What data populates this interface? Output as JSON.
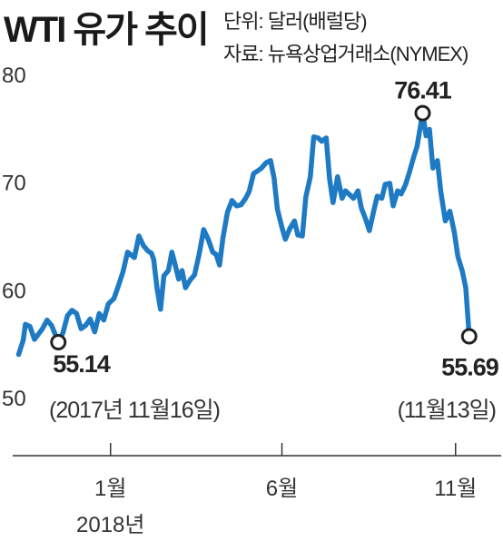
{
  "header": {
    "title": "WTI 유가 추이",
    "unit": "단위: 달러(배럴당)",
    "source": "자료: 뉴욕상업거래소(NYMEX)"
  },
  "colors": {
    "line": "#1f7ac4",
    "axis": "#333333",
    "text": "#222222"
  },
  "chart_data": {
    "type": "line",
    "title": "WTI 유가 추이",
    "xlabel": "",
    "ylabel": "",
    "ylim": [
      50,
      80
    ],
    "y_ticks": [
      50,
      60,
      70,
      80
    ],
    "x_ticks": [
      {
        "date": "2018-01-01",
        "label": "1월",
        "sublabel": "2018년"
      },
      {
        "date": "2018-06-01",
        "label": "6월"
      },
      {
        "date": "2018-11-01",
        "label": "11월"
      }
    ],
    "xlim": [
      "2017-10-10",
      "2018-11-30"
    ],
    "grid": false,
    "series": [
      {
        "points": [
          [
            "2017-10-12",
            54.0
          ],
          [
            "2017-10-16",
            55.3
          ],
          [
            "2017-10-18",
            56.8
          ],
          [
            "2017-10-22",
            56.6
          ],
          [
            "2017-10-26",
            55.4
          ],
          [
            "2017-11-02",
            56.4
          ],
          [
            "2017-11-06",
            57.2
          ],
          [
            "2017-11-10",
            56.7
          ],
          [
            "2017-11-16",
            55.14
          ],
          [
            "2017-11-20",
            56.0
          ],
          [
            "2017-11-24",
            57.6
          ],
          [
            "2017-11-28",
            58.1
          ],
          [
            "2017-12-02",
            57.8
          ],
          [
            "2017-12-06",
            56.4
          ],
          [
            "2017-12-10",
            56.7
          ],
          [
            "2017-12-14",
            57.3
          ],
          [
            "2017-12-18",
            56.1
          ],
          [
            "2017-12-22",
            57.8
          ],
          [
            "2017-12-26",
            57.2
          ],
          [
            "2017-12-30",
            58.7
          ],
          [
            "2018-01-04",
            59.2
          ],
          [
            "2018-01-08",
            60.4
          ],
          [
            "2018-01-12",
            61.7
          ],
          [
            "2018-01-16",
            63.5
          ],
          [
            "2018-01-22",
            63.0
          ],
          [
            "2018-01-26",
            65.0
          ],
          [
            "2018-01-30",
            64.1
          ],
          [
            "2018-02-03",
            63.6
          ],
          [
            "2018-02-06",
            63.4
          ],
          [
            "2018-02-08",
            62.8
          ],
          [
            "2018-02-11",
            60.1
          ],
          [
            "2018-02-14",
            58.2
          ],
          [
            "2018-02-17",
            61.3
          ],
          [
            "2018-02-21",
            61.8
          ],
          [
            "2018-02-24",
            63.5
          ],
          [
            "2018-02-27",
            62.3
          ],
          [
            "2018-03-02",
            61.0
          ],
          [
            "2018-03-05",
            61.8
          ],
          [
            "2018-03-08",
            60.2
          ],
          [
            "2018-03-12",
            60.9
          ],
          [
            "2018-03-16",
            61.4
          ],
          [
            "2018-03-20",
            63.3
          ],
          [
            "2018-03-24",
            65.6
          ],
          [
            "2018-03-28",
            64.7
          ],
          [
            "2018-04-01",
            63.5
          ],
          [
            "2018-04-04",
            63.3
          ],
          [
            "2018-04-07",
            62.3
          ],
          [
            "2018-04-10",
            64.8
          ],
          [
            "2018-04-14",
            67.2
          ],
          [
            "2018-04-18",
            68.3
          ],
          [
            "2018-04-22",
            67.8
          ],
          [
            "2018-04-26",
            67.9
          ],
          [
            "2018-04-30",
            68.5
          ],
          [
            "2018-05-03",
            69.1
          ],
          [
            "2018-05-07",
            70.8
          ],
          [
            "2018-05-10",
            71.0
          ],
          [
            "2018-05-14",
            71.3
          ],
          [
            "2018-05-18",
            71.8
          ],
          [
            "2018-05-22",
            72.0
          ],
          [
            "2018-05-25",
            70.4
          ],
          [
            "2018-05-28",
            67.5
          ],
          [
            "2018-06-01",
            65.8
          ],
          [
            "2018-06-04",
            64.7
          ],
          [
            "2018-06-08",
            65.7
          ],
          [
            "2018-06-12",
            66.4
          ],
          [
            "2018-06-15",
            65.1
          ],
          [
            "2018-06-19",
            65.0
          ],
          [
            "2018-06-22",
            68.6
          ],
          [
            "2018-06-26",
            70.5
          ],
          [
            "2018-06-29",
            74.2
          ],
          [
            "2018-07-03",
            74.1
          ],
          [
            "2018-07-06",
            73.8
          ],
          [
            "2018-07-10",
            74.1
          ],
          [
            "2018-07-13",
            70.3
          ],
          [
            "2018-07-16",
            68.1
          ],
          [
            "2018-07-20",
            70.5
          ],
          [
            "2018-07-24",
            68.5
          ],
          [
            "2018-07-27",
            69.2
          ],
          [
            "2018-07-31",
            68.8
          ],
          [
            "2018-08-03",
            68.5
          ],
          [
            "2018-08-07",
            69.2
          ],
          [
            "2018-08-10",
            67.6
          ],
          [
            "2018-08-14",
            66.5
          ],
          [
            "2018-08-17",
            65.5
          ],
          [
            "2018-08-21",
            67.4
          ],
          [
            "2018-08-24",
            68.7
          ],
          [
            "2018-08-28",
            68.5
          ],
          [
            "2018-08-31",
            69.8
          ],
          [
            "2018-09-04",
            69.9
          ],
          [
            "2018-09-07",
            67.8
          ],
          [
            "2018-09-11",
            69.2
          ],
          [
            "2018-09-14",
            68.9
          ],
          [
            "2018-09-18",
            69.8
          ],
          [
            "2018-09-21",
            70.8
          ],
          [
            "2018-09-25",
            72.3
          ],
          [
            "2018-09-28",
            73.3
          ],
          [
            "2018-10-03",
            76.41
          ],
          [
            "2018-10-06",
            74.3
          ],
          [
            "2018-10-09",
            74.9
          ],
          [
            "2018-10-12",
            71.3
          ],
          [
            "2018-10-16",
            72.0
          ],
          [
            "2018-10-19",
            69.1
          ],
          [
            "2018-10-23",
            66.4
          ],
          [
            "2018-10-27",
            67.3
          ],
          [
            "2018-10-31",
            65.3
          ],
          [
            "2018-11-03",
            63.1
          ],
          [
            "2018-11-07",
            61.7
          ],
          [
            "2018-11-10",
            60.2
          ],
          [
            "2018-11-13",
            55.69
          ]
        ]
      }
    ],
    "annotations": [
      {
        "date": "2017-11-16",
        "value": 55.14,
        "value_label": "55.14",
        "date_label": "(2017년 11월16일)"
      },
      {
        "date": "2018-10-03",
        "value": 76.41,
        "value_label": "76.41",
        "date_label": ""
      },
      {
        "date": "2018-11-13",
        "value": 55.69,
        "value_label": "55.69",
        "date_label": "(11월13일)"
      }
    ]
  }
}
